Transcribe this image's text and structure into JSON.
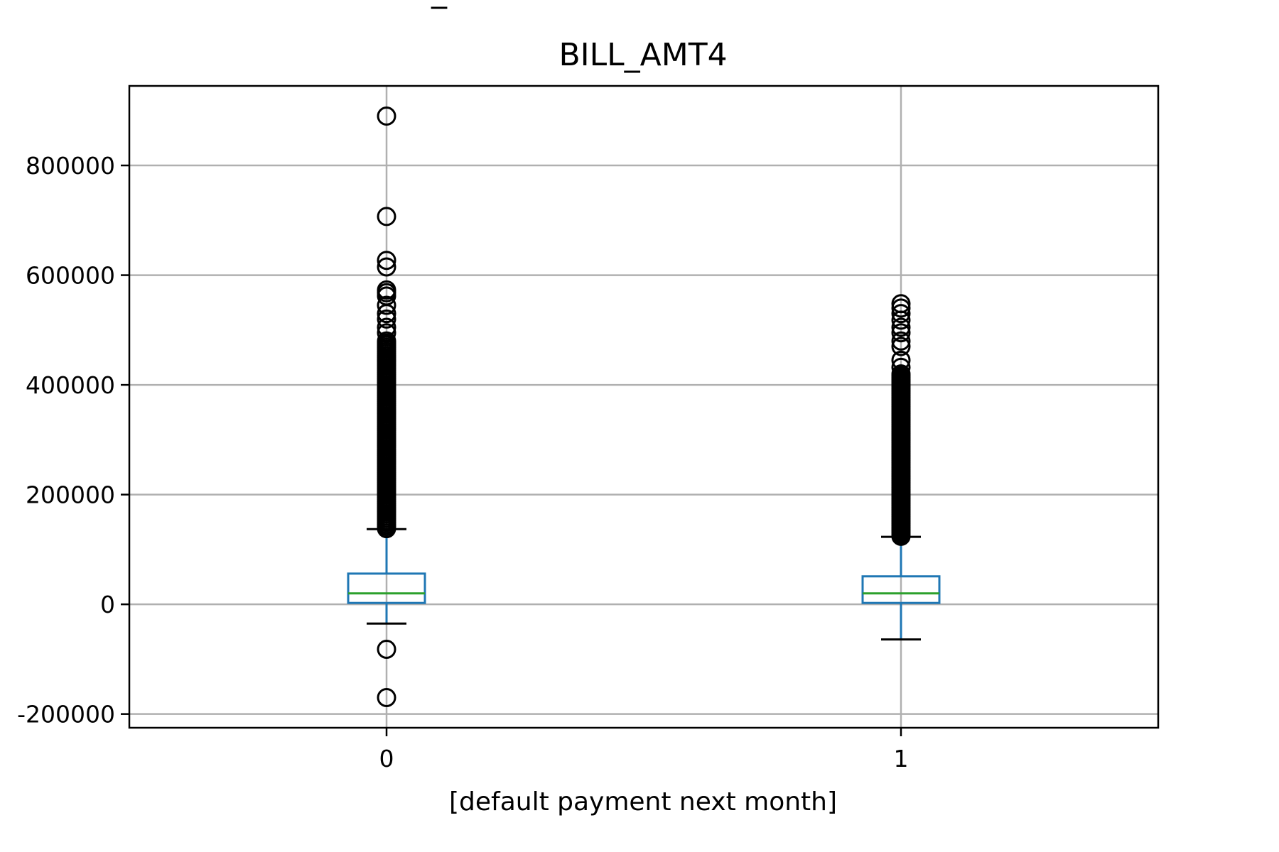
{
  "suptitle_fragment": "_",
  "chart_data": {
    "type": "box",
    "title": "BILL_AMT4",
    "xlabel": "[default payment next month]",
    "ylabel": "",
    "categories": [
      "0",
      "1"
    ],
    "ylim": [
      -225000,
      945000
    ],
    "yticks": [
      -200000,
      0,
      200000,
      400000,
      600000,
      800000
    ],
    "ytick_labels": [
      "-200000",
      "0",
      "200000",
      "400000",
      "600000",
      "800000"
    ],
    "grid": true,
    "colors": {
      "box": "#1f77b4",
      "median": "#2ca02c",
      "whisker_cap": "#000000",
      "flier": "#000000"
    },
    "boxes": [
      {
        "name": "0",
        "whislo": -35000,
        "q1": 2500,
        "median": 20000,
        "q3": 56000,
        "whishi": 137000,
        "fliers": [
          890000,
          707000,
          627000,
          615000,
          573000,
          568000,
          562000,
          545000,
          530000,
          520000,
          505000,
          495000,
          -82000,
          -170000
        ],
        "flier_band": [
          138000,
          480000
        ]
      },
      {
        "name": "1",
        "whislo": -64000,
        "q1": 2500,
        "median": 20000,
        "q3": 51000,
        "whishi": 123000,
        "fliers": [
          548000,
          540000,
          530000,
          518000,
          505000,
          495000,
          480000,
          470000,
          445000,
          432000
        ],
        "flier_band": [
          124000,
          420000
        ]
      }
    ]
  }
}
